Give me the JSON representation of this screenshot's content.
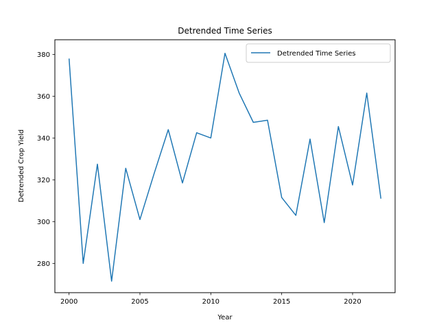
{
  "chart_data": {
    "type": "line",
    "title": "Detrended Time Series",
    "xlabel": "Year",
    "ylabel": "Detrended Crop Yield",
    "xlim": [
      1999,
      2023
    ],
    "ylim": [
      266,
      387
    ],
    "xticks": [
      2000,
      2005,
      2010,
      2015,
      2020
    ],
    "yticks": [
      280,
      300,
      320,
      340,
      360,
      380
    ],
    "grid": false,
    "legend_position": "top-right",
    "series": [
      {
        "name": "Detrended Time Series",
        "color": "#1f77b4",
        "x": [
          2000,
          2001,
          2002,
          2003,
          2004,
          2005,
          2006,
          2007,
          2008,
          2009,
          2010,
          2011,
          2012,
          2013,
          2014,
          2015,
          2016,
          2017,
          2018,
          2019,
          2020,
          2021,
          2022
        ],
        "y": [
          378,
          280,
          327.5,
          271.5,
          325.5,
          301,
          323,
          344,
          318.5,
          342.5,
          340,
          380.5,
          361.5,
          347.5,
          348.5,
          311.5,
          303,
          339.5,
          299.5,
          345.5,
          317.5,
          361.5,
          311
        ]
      }
    ]
  }
}
